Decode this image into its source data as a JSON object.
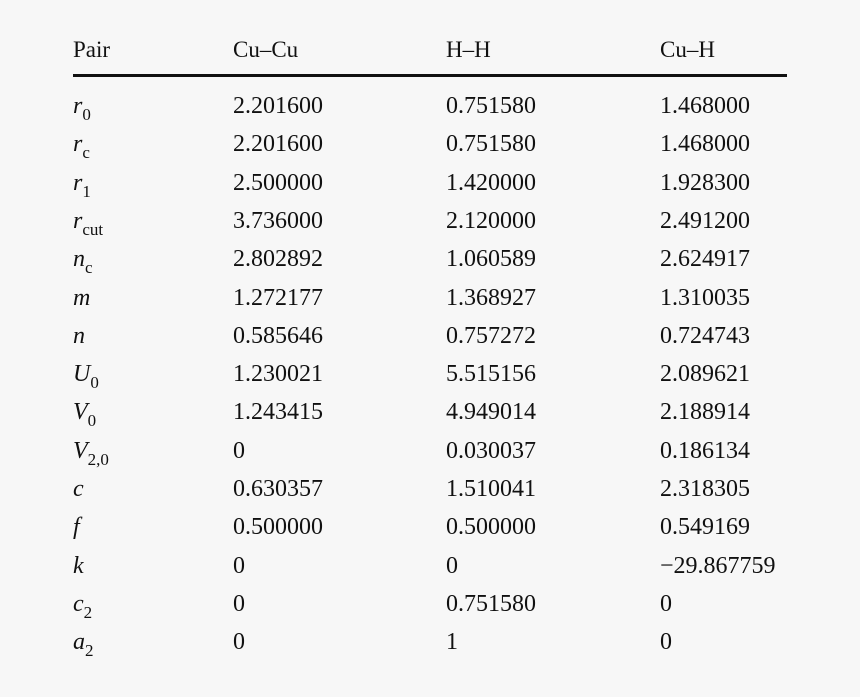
{
  "table": {
    "header": [
      "Pair",
      "Cu–Cu",
      "H–H",
      "Cu–H"
    ],
    "rows": [
      {
        "symbol": "r",
        "sub": "0",
        "values": [
          "2.201600",
          "0.751580",
          "1.468000"
        ]
      },
      {
        "symbol": "r",
        "sub": "c",
        "values": [
          "2.201600",
          "0.751580",
          "1.468000"
        ]
      },
      {
        "symbol": "r",
        "sub": "1",
        "values": [
          "2.500000",
          "1.420000",
          "1.928300"
        ]
      },
      {
        "symbol": "r",
        "sub": "cut",
        "values": [
          "3.736000",
          "2.120000",
          "2.491200"
        ]
      },
      {
        "symbol": "n",
        "sub": "c",
        "values": [
          "2.802892",
          "1.060589",
          "2.624917"
        ]
      },
      {
        "symbol": "m",
        "values": [
          "1.272177",
          "1.368927",
          "1.310035"
        ]
      },
      {
        "symbol": "n",
        "values": [
          "0.585646",
          "0.757272",
          "0.724743"
        ]
      },
      {
        "symbol": "U",
        "sub": "0",
        "values": [
          "1.230021",
          "5.515156",
          "2.089621"
        ]
      },
      {
        "symbol": "V",
        "sub": "0",
        "values": [
          "1.243415",
          "4.949014",
          "2.188914"
        ]
      },
      {
        "symbol": "V",
        "sub": "2,0",
        "values": [
          "0",
          "0.030037",
          "0.186134"
        ]
      },
      {
        "symbol": "c",
        "values": [
          "0.630357",
          "1.510041",
          "2.318305"
        ]
      },
      {
        "symbol": "f",
        "values": [
          "0.500000",
          "0.500000",
          "0.549169"
        ]
      },
      {
        "symbol": "k",
        "values": [
          "0",
          "0",
          "−29.867759"
        ]
      },
      {
        "symbol": "c",
        "sub": "2",
        "values": [
          "0",
          "0.751580",
          "0"
        ]
      },
      {
        "symbol": "a",
        "sub": "2",
        "values": [
          "0",
          "1",
          "0"
        ]
      }
    ]
  }
}
